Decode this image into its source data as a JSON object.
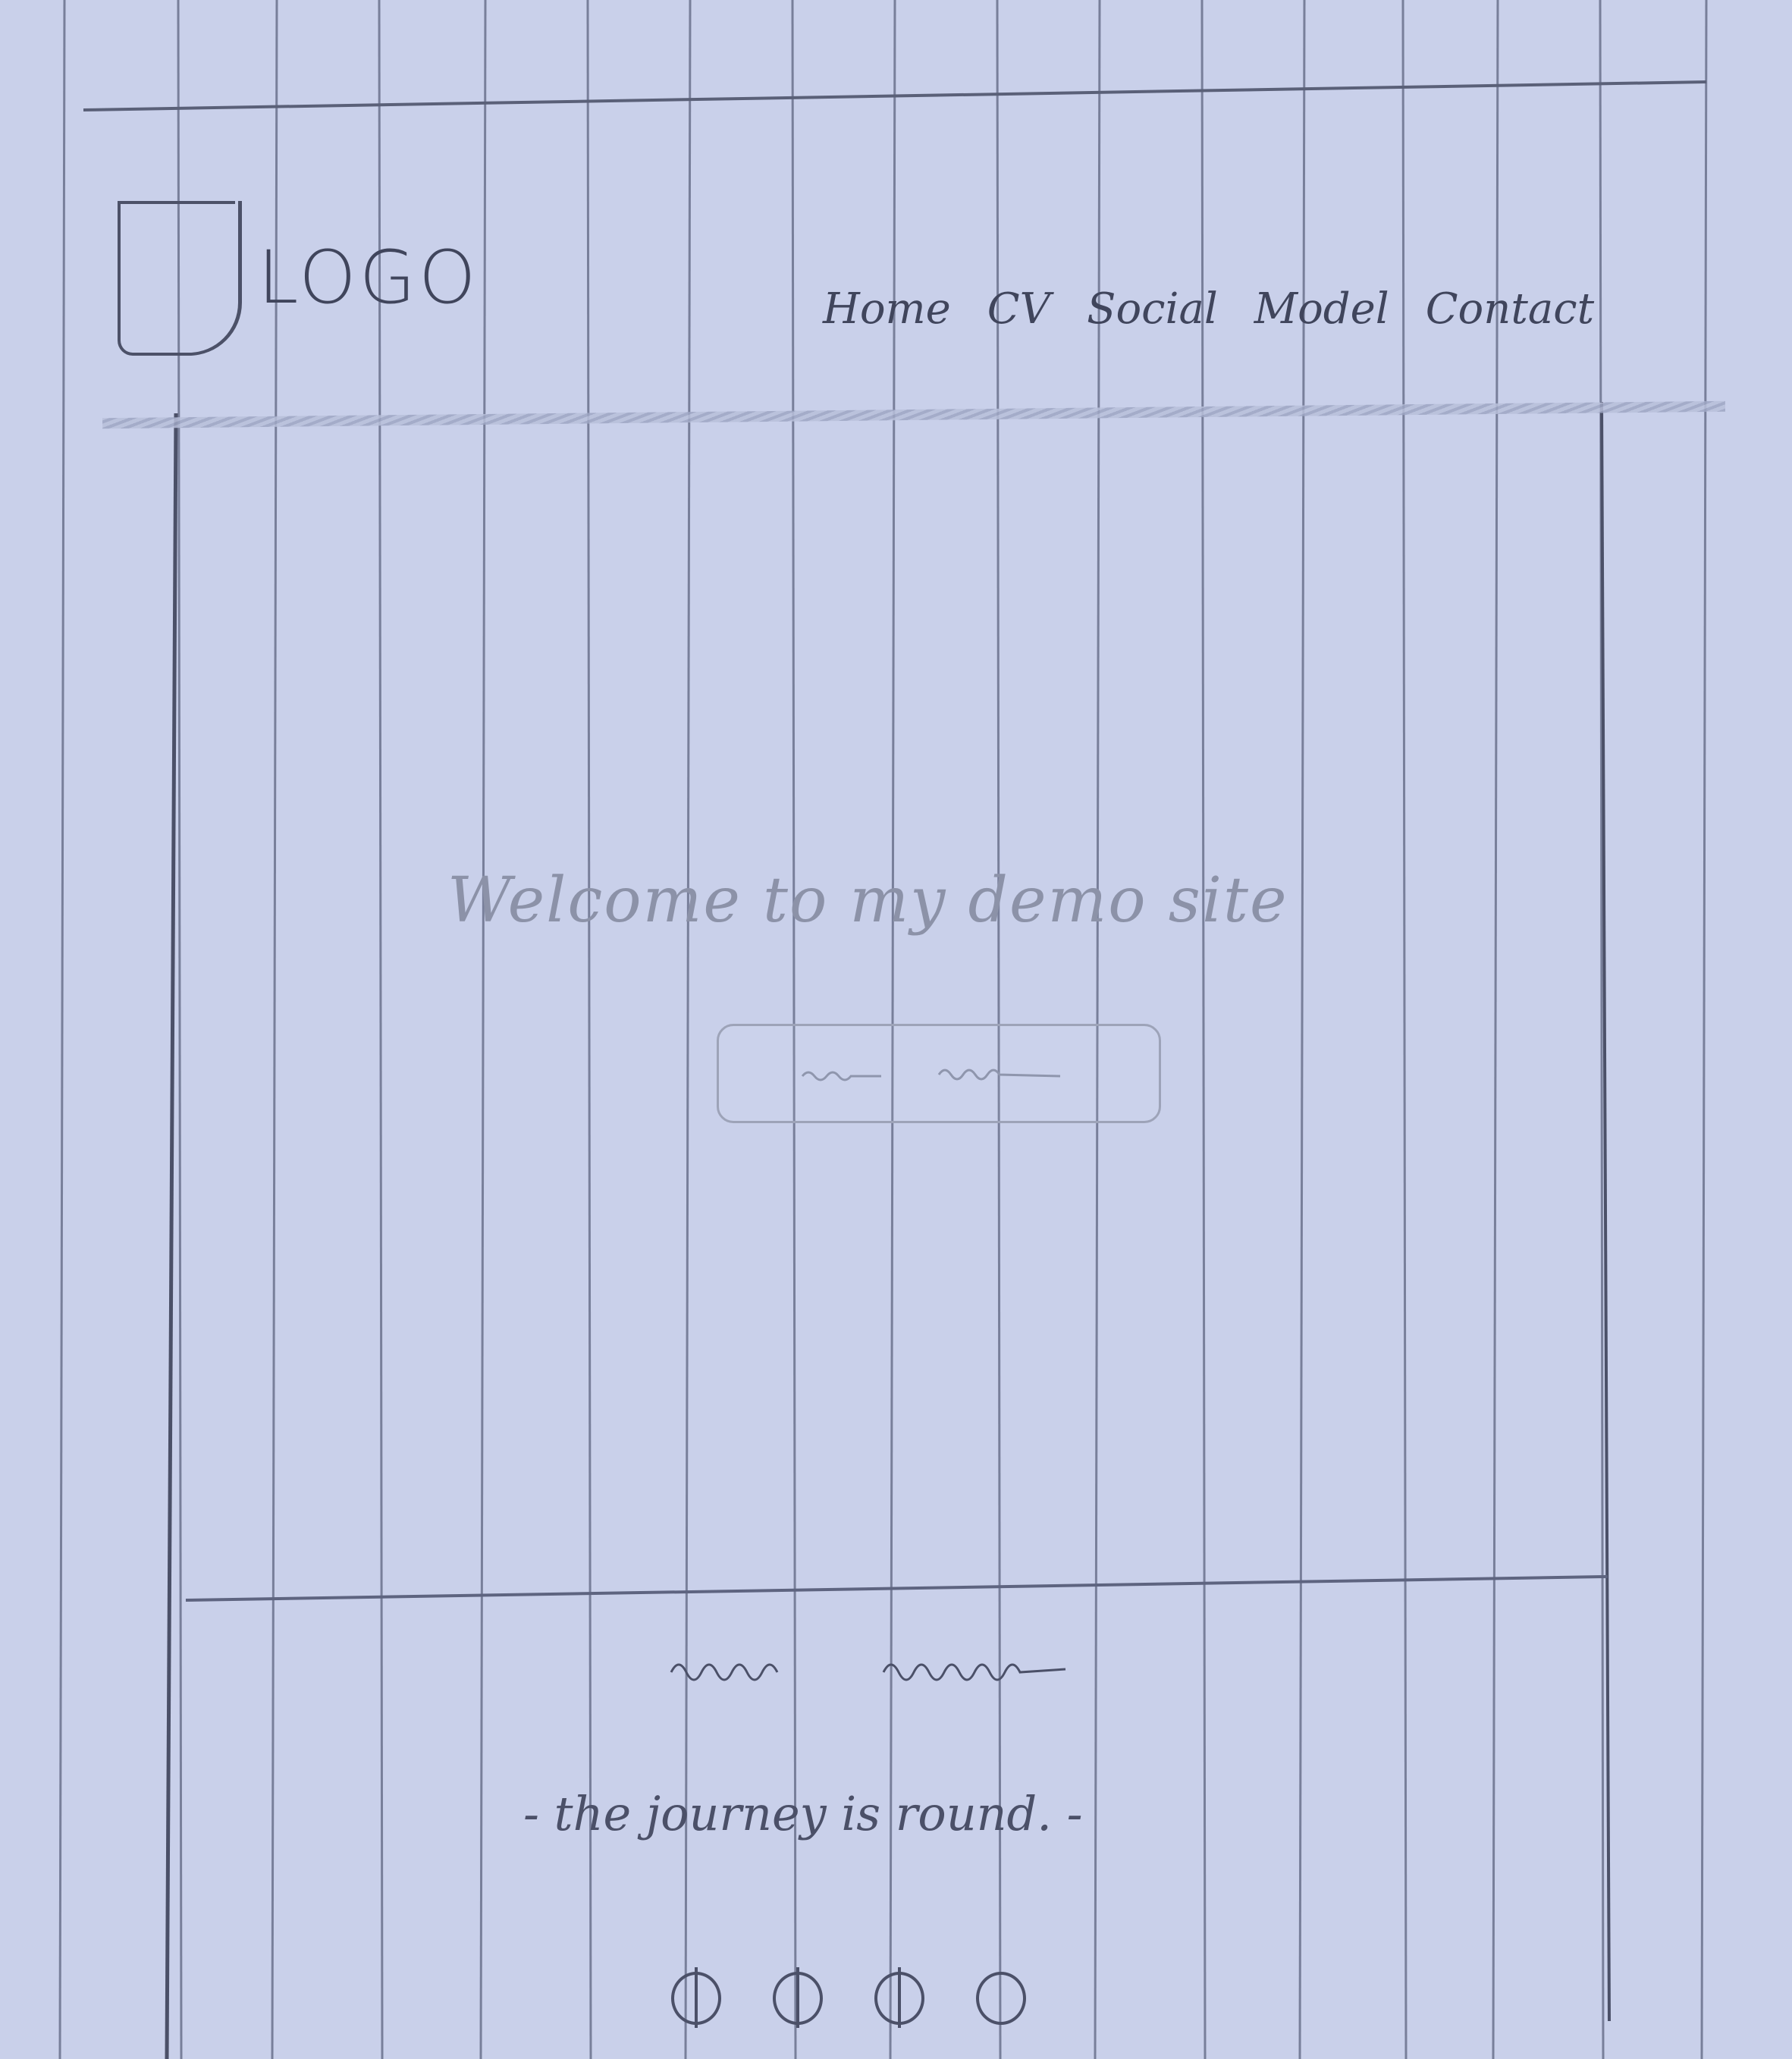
{
  "header": {
    "logo_text": "LOGO",
    "nav": [
      "Home",
      "CV",
      "Social",
      "Model",
      "Contact"
    ]
  },
  "hero": {
    "welcome": "Welcome to my demo site"
  },
  "footer": {
    "tagline": "- the journey is round. -",
    "social_icons": [
      "circle-icon",
      "circle-icon",
      "circle-icon",
      "circle-icon"
    ]
  },
  "colors": {
    "paper": "#c9d0ea",
    "pencil": "#4b5068",
    "faint_pencil": "#8c92a8"
  }
}
